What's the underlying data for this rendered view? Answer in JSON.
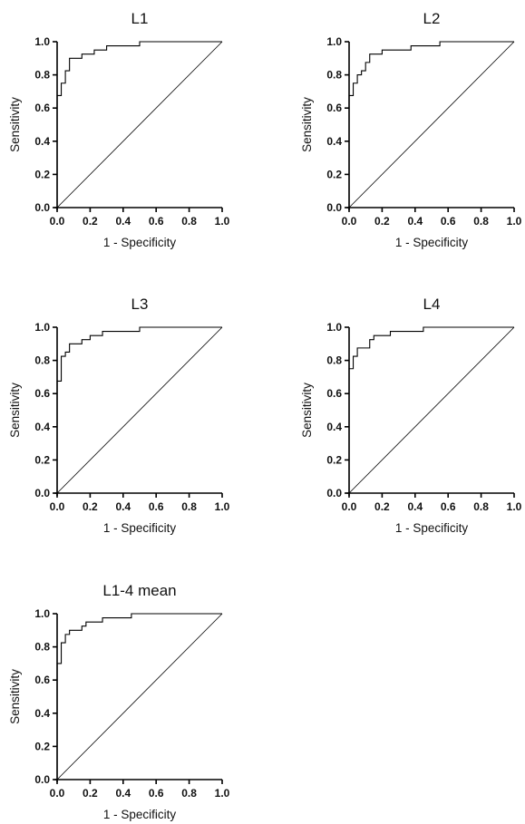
{
  "chart_data": [
    {
      "type": "line",
      "title": "L1",
      "xlabel": "1 - Specificity",
      "ylabel": "Sensitivity",
      "xlim": [
        0,
        1
      ],
      "ylim": [
        0,
        1
      ],
      "xticks": [
        "0.0",
        "0.2",
        "0.4",
        "0.6",
        "0.8",
        "1.0"
      ],
      "yticks": [
        "0.0",
        "0.2",
        "0.4",
        "0.6",
        "0.8",
        "1.0"
      ],
      "series": [
        {
          "points": [
            [
              0,
              0
            ],
            [
              0,
              0.675
            ],
            [
              0.025,
              0.675
            ],
            [
              0.025,
              0.75
            ],
            [
              0.05,
              0.75
            ],
            [
              0.05,
              0.825
            ],
            [
              0.075,
              0.825
            ],
            [
              0.075,
              0.9
            ],
            [
              0.15,
              0.9
            ],
            [
              0.15,
              0.925
            ],
            [
              0.225,
              0.925
            ],
            [
              0.225,
              0.95
            ],
            [
              0.3,
              0.95
            ],
            [
              0.3,
              0.975
            ],
            [
              0.5,
              0.975
            ],
            [
              0.5,
              1.0
            ],
            [
              1.0,
              1.0
            ]
          ]
        },
        {
          "points": [
            [
              0,
              0
            ],
            [
              1,
              1
            ]
          ]
        }
      ]
    },
    {
      "type": "line",
      "title": "L2",
      "xlabel": "1 - Specificity",
      "ylabel": "Sensitivity",
      "xlim": [
        0,
        1
      ],
      "ylim": [
        0,
        1
      ],
      "xticks": [
        "0.0",
        "0.2",
        "0.4",
        "0.6",
        "0.8",
        "1.0"
      ],
      "yticks": [
        "0.0",
        "0.2",
        "0.4",
        "0.6",
        "0.8",
        "1.0"
      ],
      "series": [
        {
          "points": [
            [
              0,
              0
            ],
            [
              0,
              0.675
            ],
            [
              0.025,
              0.675
            ],
            [
              0.025,
              0.75
            ],
            [
              0.05,
              0.75
            ],
            [
              0.05,
              0.8
            ],
            [
              0.075,
              0.8
            ],
            [
              0.075,
              0.825
            ],
            [
              0.1,
              0.825
            ],
            [
              0.1,
              0.875
            ],
            [
              0.125,
              0.875
            ],
            [
              0.125,
              0.925
            ],
            [
              0.2,
              0.925
            ],
            [
              0.2,
              0.95
            ],
            [
              0.375,
              0.95
            ],
            [
              0.375,
              0.975
            ],
            [
              0.55,
              0.975
            ],
            [
              0.55,
              1.0
            ],
            [
              1.0,
              1.0
            ]
          ]
        },
        {
          "points": [
            [
              0,
              0
            ],
            [
              1,
              1
            ]
          ]
        }
      ]
    },
    {
      "type": "line",
      "title": "L3",
      "xlabel": "1 - Specificity",
      "ylabel": "Sensitivity",
      "xlim": [
        0,
        1
      ],
      "ylim": [
        0,
        1
      ],
      "xticks": [
        "0.0",
        "0.2",
        "0.4",
        "0.6",
        "0.8",
        "1.0"
      ],
      "yticks": [
        "0.0",
        "0.2",
        "0.4",
        "0.6",
        "0.8",
        "1.0"
      ],
      "series": [
        {
          "points": [
            [
              0,
              0
            ],
            [
              0,
              0.675
            ],
            [
              0.025,
              0.675
            ],
            [
              0.025,
              0.825
            ],
            [
              0.05,
              0.825
            ],
            [
              0.05,
              0.85
            ],
            [
              0.075,
              0.85
            ],
            [
              0.075,
              0.9
            ],
            [
              0.15,
              0.9
            ],
            [
              0.15,
              0.925
            ],
            [
              0.2,
              0.925
            ],
            [
              0.2,
              0.95
            ],
            [
              0.275,
              0.95
            ],
            [
              0.275,
              0.975
            ],
            [
              0.5,
              0.975
            ],
            [
              0.5,
              1.0
            ],
            [
              1.0,
              1.0
            ]
          ]
        },
        {
          "points": [
            [
              0,
              0
            ],
            [
              1,
              1
            ]
          ]
        }
      ]
    },
    {
      "type": "line",
      "title": "L4",
      "xlabel": "1 - Specificity",
      "ylabel": "Sensitivity",
      "xlim": [
        0,
        1
      ],
      "ylim": [
        0,
        1
      ],
      "xticks": [
        "0.0",
        "0.2",
        "0.4",
        "0.6",
        "0.8",
        "1.0"
      ],
      "yticks": [
        "0.0",
        "0.2",
        "0.4",
        "0.6",
        "0.8",
        "1.0"
      ],
      "series": [
        {
          "points": [
            [
              0,
              0
            ],
            [
              0,
              0.75
            ],
            [
              0.025,
              0.75
            ],
            [
              0.025,
              0.825
            ],
            [
              0.05,
              0.825
            ],
            [
              0.05,
              0.875
            ],
            [
              0.125,
              0.875
            ],
            [
              0.125,
              0.925
            ],
            [
              0.15,
              0.925
            ],
            [
              0.15,
              0.95
            ],
            [
              0.25,
              0.95
            ],
            [
              0.25,
              0.975
            ],
            [
              0.45,
              0.975
            ],
            [
              0.45,
              1.0
            ],
            [
              1.0,
              1.0
            ]
          ]
        },
        {
          "points": [
            [
              0,
              0
            ],
            [
              1,
              1
            ]
          ]
        }
      ]
    },
    {
      "type": "line",
      "title": "L1-4 mean",
      "xlabel": "1 - Specificity",
      "ylabel": "Sensitivity",
      "xlim": [
        0,
        1
      ],
      "ylim": [
        0,
        1
      ],
      "xticks": [
        "0.0",
        "0.2",
        "0.4",
        "0.6",
        "0.8",
        "1.0"
      ],
      "yticks": [
        "0.0",
        "0.2",
        "0.4",
        "0.6",
        "0.8",
        "1.0"
      ],
      "series": [
        {
          "points": [
            [
              0,
              0
            ],
            [
              0,
              0.7
            ],
            [
              0.025,
              0.7
            ],
            [
              0.025,
              0.825
            ],
            [
              0.05,
              0.825
            ],
            [
              0.05,
              0.875
            ],
            [
              0.075,
              0.875
            ],
            [
              0.075,
              0.9
            ],
            [
              0.15,
              0.9
            ],
            [
              0.15,
              0.925
            ],
            [
              0.175,
              0.925
            ],
            [
              0.175,
              0.95
            ],
            [
              0.275,
              0.95
            ],
            [
              0.275,
              0.975
            ],
            [
              0.45,
              0.975
            ],
            [
              0.45,
              1.0
            ],
            [
              1.0,
              1.0
            ]
          ]
        },
        {
          "points": [
            [
              0,
              0
            ],
            [
              1,
              1
            ]
          ]
        }
      ]
    }
  ]
}
